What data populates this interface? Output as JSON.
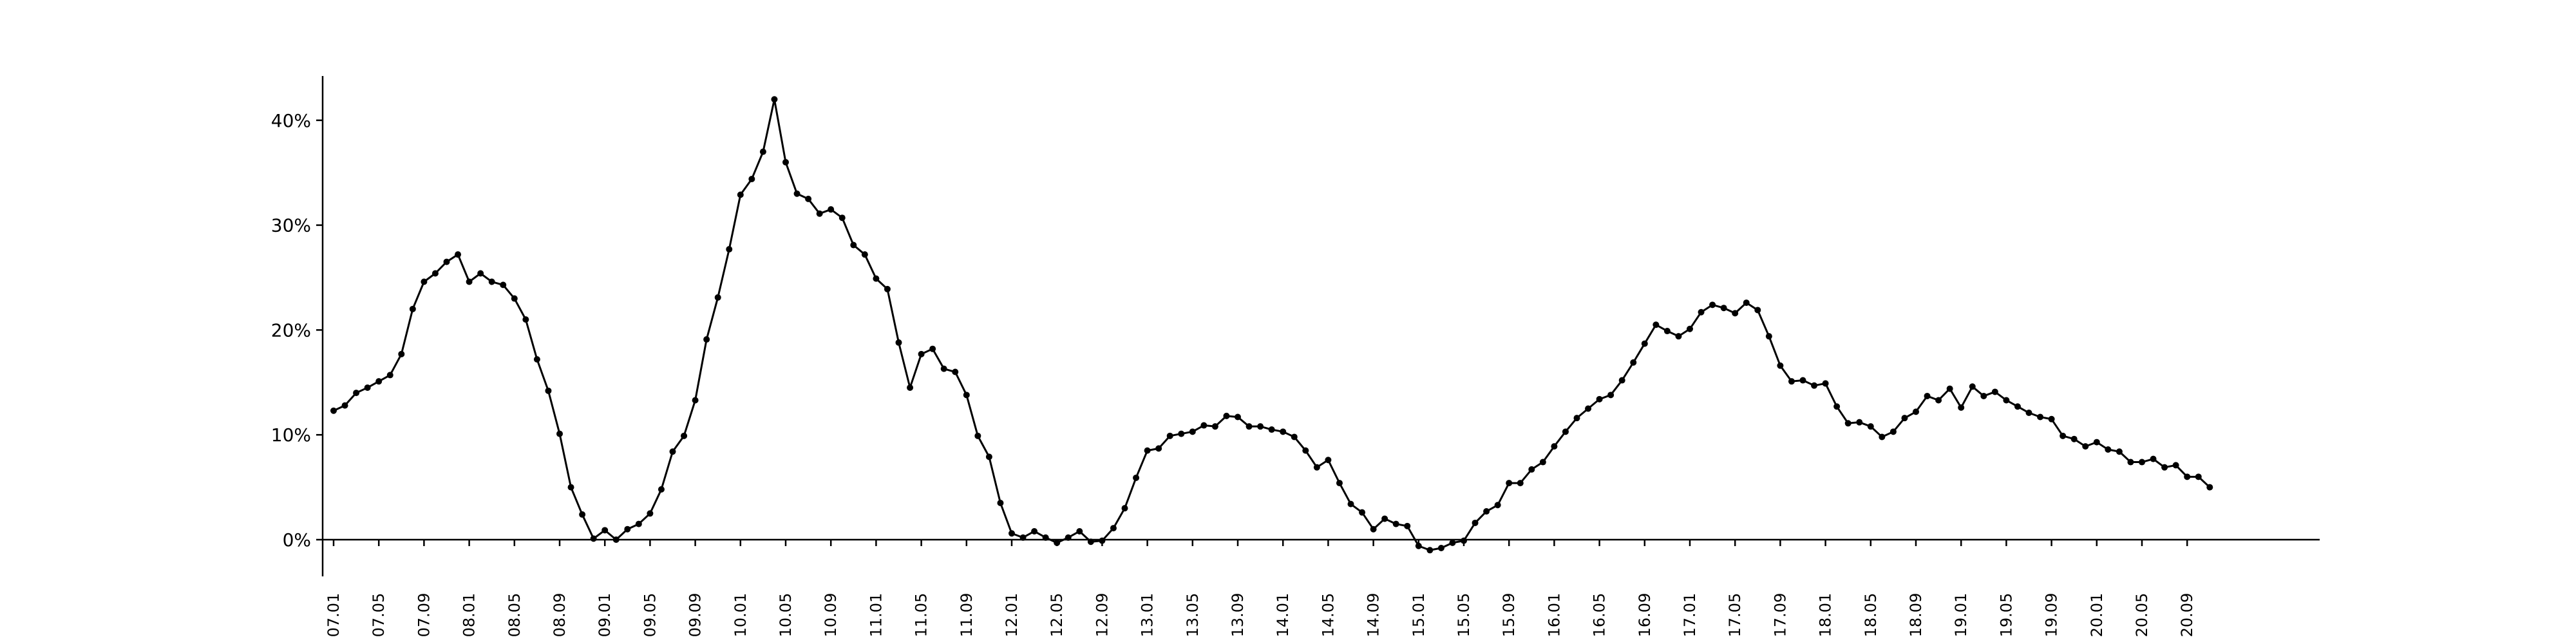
{
  "chart_data": {
    "type": "line",
    "title": "",
    "xlabel": "",
    "ylabel": "",
    "grid": false,
    "legend": "none",
    "colors": {
      "line": "#000000",
      "marker": "#000000",
      "axis": "#000000"
    },
    "ylim": [
      -0.03,
      0.44
    ],
    "y_ticks": [
      {
        "value": 0.0,
        "label": "0%"
      },
      {
        "value": 0.1,
        "label": "10%"
      },
      {
        "value": 0.2,
        "label": "20%"
      },
      {
        "value": 0.3,
        "label": "30%"
      },
      {
        "value": 0.4,
        "label": "40%"
      }
    ],
    "x_ticks": [
      {
        "value": 0,
        "label": "07.01"
      },
      {
        "value": 4,
        "label": "07.05"
      },
      {
        "value": 8,
        "label": "07.09"
      },
      {
        "value": 12,
        "label": "08.01"
      },
      {
        "value": 16,
        "label": "08.05"
      },
      {
        "value": 20,
        "label": "08.09"
      },
      {
        "value": 24,
        "label": "09.01"
      },
      {
        "value": 28,
        "label": "09.05"
      },
      {
        "value": 32,
        "label": "09.09"
      },
      {
        "value": 36,
        "label": "10.01"
      },
      {
        "value": 40,
        "label": "10.05"
      },
      {
        "value": 44,
        "label": "10.09"
      },
      {
        "value": 48,
        "label": "11.01"
      },
      {
        "value": 52,
        "label": "11.05"
      },
      {
        "value": 56,
        "label": "11.09"
      },
      {
        "value": 60,
        "label": "12.01"
      },
      {
        "value": 64,
        "label": "12.05"
      },
      {
        "value": 68,
        "label": "12.09"
      },
      {
        "value": 72,
        "label": "13.01"
      },
      {
        "value": 76,
        "label": "13.05"
      },
      {
        "value": 80,
        "label": "13.09"
      },
      {
        "value": 84,
        "label": "14.01"
      },
      {
        "value": 88,
        "label": "14.05"
      },
      {
        "value": 92,
        "label": "14.09"
      },
      {
        "value": 96,
        "label": "15.01"
      },
      {
        "value": 100,
        "label": "15.05"
      },
      {
        "value": 104,
        "label": "15.09"
      },
      {
        "value": 108,
        "label": "16.01"
      },
      {
        "value": 112,
        "label": "16.05"
      },
      {
        "value": 116,
        "label": "16.09"
      },
      {
        "value": 120,
        "label": "17.01"
      },
      {
        "value": 124,
        "label": "17.05"
      },
      {
        "value": 128,
        "label": "17.09"
      },
      {
        "value": 132,
        "label": "18.01"
      },
      {
        "value": 136,
        "label": "18.05"
      },
      {
        "value": 140,
        "label": "18.09"
      },
      {
        "value": 144,
        "label": "19.01"
      },
      {
        "value": 148,
        "label": "19.05"
      },
      {
        "value": 152,
        "label": "19.09"
      },
      {
        "value": 156,
        "label": "20.01"
      },
      {
        "value": 160,
        "label": "20.05"
      },
      {
        "value": 164,
        "label": "20.09"
      }
    ],
    "series": [
      {
        "values": [
          0.123,
          0.128,
          0.14,
          0.145,
          0.151,
          0.157,
          0.177,
          0.22,
          0.246,
          0.254,
          0.265,
          0.272,
          0.246,
          0.254,
          0.246,
          0.243,
          0.23,
          0.21,
          0.172,
          0.142,
          0.101,
          0.05,
          0.024,
          0.001,
          0.009,
          0.0,
          0.01,
          0.015,
          0.025,
          0.048,
          0.084,
          0.099,
          0.133,
          0.191,
          0.231,
          0.277,
          0.329,
          0.344,
          0.37,
          0.42,
          0.36,
          0.33,
          0.325,
          0.311,
          0.315,
          0.307,
          0.281,
          0.272,
          0.249,
          0.239,
          0.188,
          0.145,
          0.177,
          0.182,
          0.163,
          0.16,
          0.138,
          0.099,
          0.079,
          0.035,
          0.006,
          0.002,
          0.008,
          0.002,
          -0.003,
          0.002,
          0.008,
          -0.002,
          -0.001,
          0.011,
          0.03,
          0.059,
          0.085,
          0.087,
          0.099,
          0.101,
          0.103,
          0.109,
          0.108,
          0.118,
          0.117,
          0.108,
          0.108,
          0.105,
          0.103,
          0.098,
          0.085,
          0.069,
          0.076,
          0.054,
          0.034,
          0.026,
          0.01,
          0.02,
          0.015,
          0.013,
          -0.006,
          -0.01,
          -0.008,
          -0.003,
          -0.001,
          0.016,
          0.027,
          0.033,
          0.054,
          0.054,
          0.067,
          0.074,
          0.089,
          0.103,
          0.116,
          0.125,
          0.134,
          0.138,
          0.152,
          0.169,
          0.187,
          0.205,
          0.199,
          0.194,
          0.201,
          0.217,
          0.224,
          0.221,
          0.216,
          0.226,
          0.219,
          0.194,
          0.166,
          0.151,
          0.152,
          0.147,
          0.149,
          0.127,
          0.111,
          0.112,
          0.108,
          0.098,
          0.103,
          0.116,
          0.122,
          0.137,
          0.133,
          0.144,
          0.126,
          0.146,
          0.137,
          0.141,
          0.133,
          0.127,
          0.121,
          0.117,
          0.115,
          0.099,
          0.096,
          0.089,
          0.093,
          0.086,
          0.084,
          0.074,
          0.074,
          0.077,
          0.069,
          0.071,
          0.06,
          0.06,
          0.05
        ]
      }
    ]
  }
}
